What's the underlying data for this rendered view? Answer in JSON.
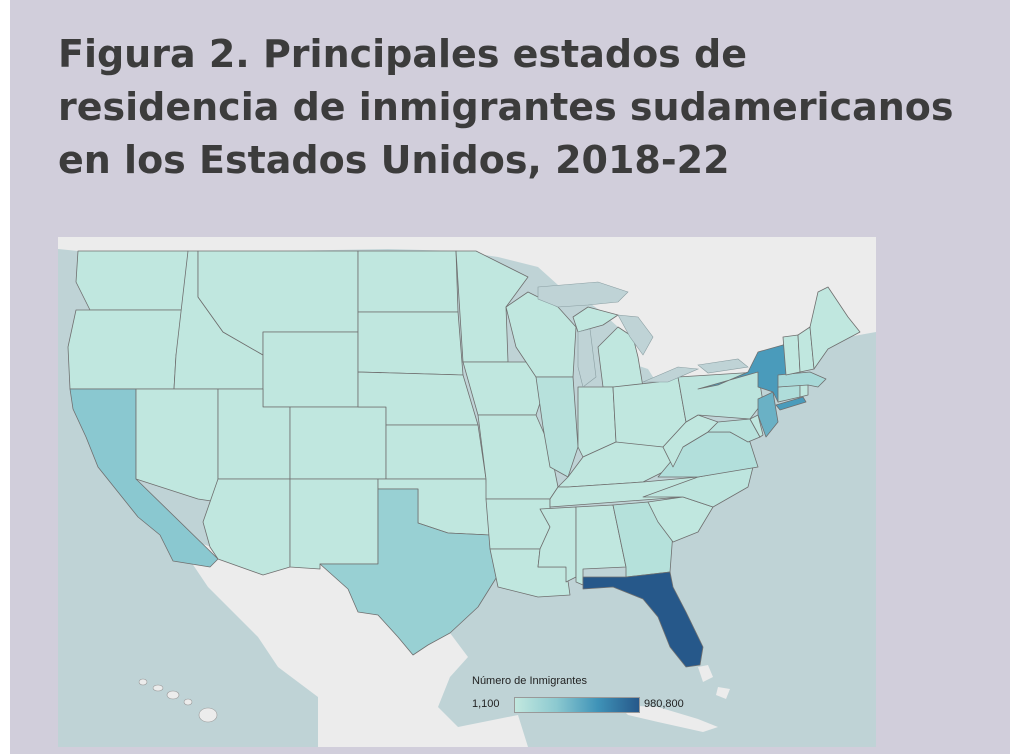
{
  "figure": {
    "title": "Figura 2. Principales estados de residencia de inmigrantes sudamericanos en los Estados Unidos, 2018-22"
  },
  "legend": {
    "title": "Número de Inmigrantes",
    "min_label": "1,100",
    "max_label": "980,800",
    "min_value": 1100,
    "max_value": 980800,
    "colors": [
      "#c2e8df",
      "#8cc9d0",
      "#3f93b8",
      "#26588a"
    ]
  },
  "map_colors": {
    "water": "#bfd3d6",
    "foreign_land": "#ececec",
    "state_base": "#bde5dc",
    "border": "#6f6f6f"
  },
  "state_levels": {
    "Florida": 1.0,
    "New York": 0.62,
    "New Jersey": 0.48,
    "California": 0.34,
    "Texas": 0.26,
    "Massachusetts": 0.16,
    "Connecticut": 0.12,
    "Virginia": 0.1,
    "Georgia": 0.08,
    "Illinois": 0.07,
    "Maryland": 0.06,
    "Pennsylvania": 0.04,
    "North Carolina": 0.03,
    "Other": 0.01
  }
}
